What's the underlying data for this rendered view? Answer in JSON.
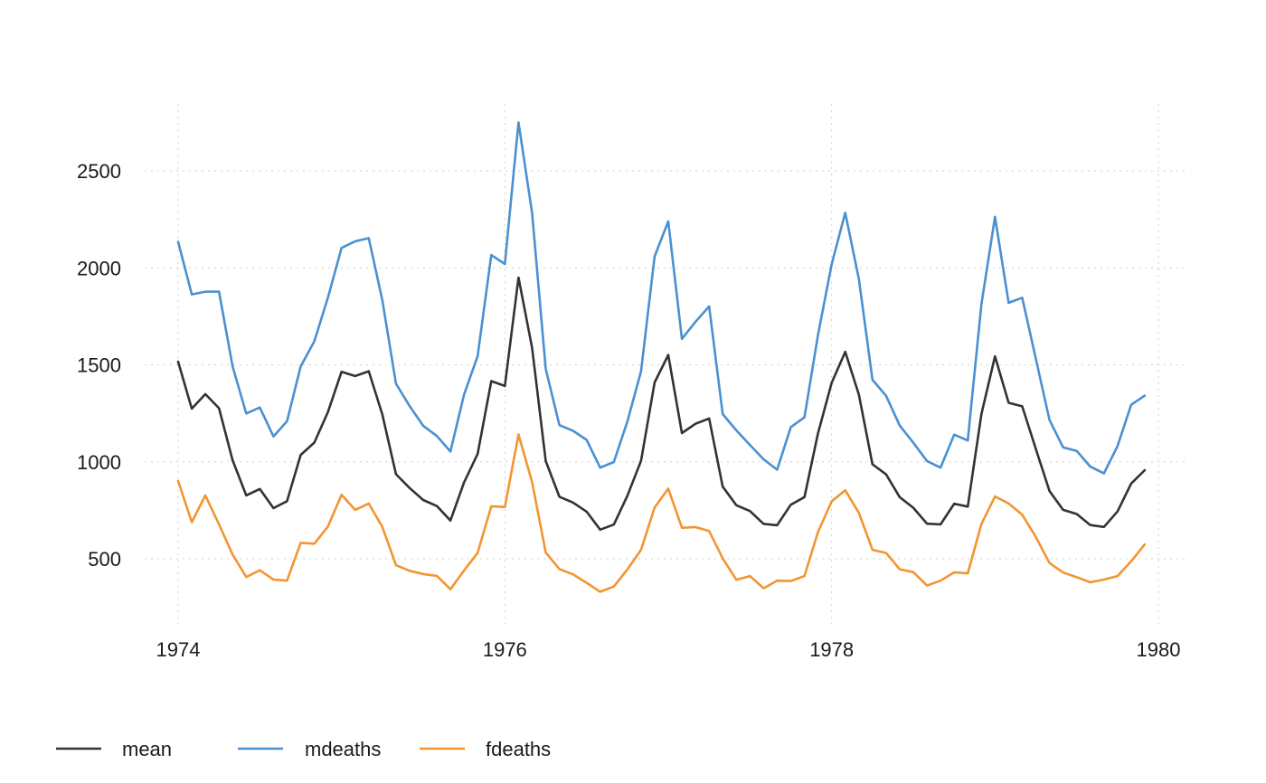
{
  "chart_data": {
    "type": "line",
    "title": "",
    "xlabel": "",
    "ylabel": "",
    "xlim": [
      1974,
      1980
    ],
    "ylim": [
      200,
      2830
    ],
    "x_ticks": [
      1974,
      1976,
      1978,
      1980
    ],
    "x_tick_labels": [
      "1974",
      "1976",
      "1978",
      "1980"
    ],
    "y_ticks": [
      500,
      1000,
      1500,
      2000,
      2500
    ],
    "y_tick_labels": [
      "500",
      "1000",
      "1500",
      "2000",
      "2500"
    ],
    "grid": true,
    "legend_position": "bottom-left",
    "x_start": 1974,
    "x_step": 0.0833333,
    "series": [
      {
        "name": "mean",
        "color": "#333333",
        "values": [
          1516,
          1274,
          1349,
          1276,
          1008,
          827,
          860,
          761,
          797,
          1035,
          1099,
          1256,
          1464,
          1442,
          1467,
          1244,
          936,
          865,
          803,
          772,
          697,
          894,
          1041,
          1416,
          1391,
          1950,
          1588,
          1004,
          820,
          790,
          743,
          650,
          676,
          825,
          1005,
          1409,
          1551,
          1148,
          1196,
          1223,
          872,
          776,
          746,
          680,
          673,
          779,
          818,
          1147,
          1407,
          1567,
          1346,
          987,
          935,
          818,
          763,
          681,
          677,
          784,
          769,
          1246,
          1544,
          1304,
          1286,
          1066,
          849,
          752,
          731,
          674,
          664,
          744,
          888,
          957
        ]
      },
      {
        "name": "mdeaths",
        "color": "#4a90d2",
        "values": [
          2134,
          1863,
          1877,
          1877,
          1492,
          1249,
          1280,
          1131,
          1209,
          1492,
          1621,
          1846,
          2103,
          2137,
          2153,
          1833,
          1403,
          1288,
          1186,
          1133,
          1053,
          1347,
          1545,
          2066,
          2020,
          2750,
          2283,
          1479,
          1189,
          1160,
          1113,
          970,
          999,
          1208,
          1467,
          2059,
          2240,
          1634,
          1722,
          1801,
          1246,
          1162,
          1087,
          1013,
          959,
          1179,
          1229,
          1655,
          2019,
          2284,
          1942,
          1423,
          1340,
          1187,
          1098,
          1004,
          970,
          1140,
          1110,
          1812,
          2263,
          1820,
          1846,
          1531,
          1215,
          1075,
          1056,
          975,
          940,
          1081,
          1294,
          1341
        ]
      },
      {
        "name": "fdeaths",
        "color": "#f39530",
        "values": [
          901,
          689,
          827,
          677,
          522,
          406,
          441,
          393,
          387,
          582,
          578,
          666,
          830,
          752,
          785,
          664,
          467,
          438,
          421,
          412,
          343,
          440,
          531,
          771,
          767,
          1141,
          896,
          532,
          447,
          420,
          376,
          330,
          357,
          445,
          546,
          764,
          862,
          660,
          663,
          643,
          502,
          392,
          411,
          348,
          387,
          385,
          411,
          638,
          796,
          853,
          737,
          546,
          530,
          446,
          431,
          362,
          387,
          430,
          425,
          679,
          821,
          785,
          727,
          612,
          478,
          429,
          405,
          379,
          393,
          411,
          487,
          574
        ]
      }
    ]
  }
}
